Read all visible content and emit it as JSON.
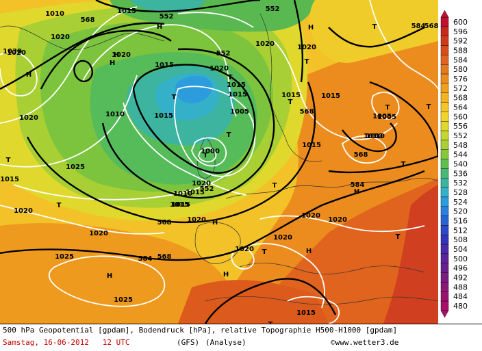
{
  "scale": {
    "levels": [
      600,
      596,
      592,
      588,
      584,
      580,
      576,
      572,
      568,
      564,
      560,
      556,
      552,
      548,
      544,
      540,
      536,
      532,
      528,
      524,
      520,
      516,
      512,
      508,
      504,
      500,
      496,
      492,
      488,
      484,
      480
    ],
    "colors": [
      "#c01030",
      "#c8281c",
      "#d03a1a",
      "#d84e1a",
      "#e06420",
      "#e6781e",
      "#ec8c1e",
      "#f0a01e",
      "#f4b420",
      "#f6c624",
      "#f2d42a",
      "#e0d82c",
      "#c6d630",
      "#a8d034",
      "#86c83c",
      "#60c04c",
      "#48b874",
      "#3cb4a0",
      "#34b0c8",
      "#2c9cdc",
      "#2a80dc",
      "#2a64d4",
      "#2c48c8",
      "#3434b8",
      "#4a2aa8",
      "#5c2498",
      "#6a208c",
      "#7a1c82",
      "#8a1878",
      "#9a146e",
      "#a8106a"
    ]
  },
  "map": {
    "geopotential_labels": [
      "552",
      "552",
      "552",
      "568",
      "568",
      "568",
      "568",
      "552",
      "568",
      "568",
      "584",
      "584",
      "584"
    ],
    "pressure_labels": [
      "1010",
      "1015",
      "1020",
      "1030",
      "1020",
      "1015",
      "1020",
      "1020",
      "1015",
      "1015",
      "1020",
      "1015",
      "1005",
      "1010",
      "1020",
      "1015",
      "1015",
      "1000",
      "1005",
      "1010",
      "1015",
      "1020",
      "1015",
      "1020",
      "1025",
      "1025",
      "1020",
      "1020",
      "1020",
      "1020",
      "1020",
      "1025",
      "1015",
      "1015",
      "1015",
      "1010",
      "1015",
      "1020",
      "1020",
      "1010",
      "1005"
    ],
    "high_symbols": [
      "H",
      "H",
      "H",
      "H",
      "H",
      "H",
      "H",
      "H",
      "H",
      "H"
    ],
    "low_symbols": [
      "T",
      "T",
      "T",
      "T",
      "T",
      "T",
      "T",
      "T",
      "T",
      "T",
      "T",
      "T",
      "T",
      "T",
      "T",
      "T"
    ]
  },
  "footer": {
    "description": "500 hPa Geopotential [gpdam], Bodendruck [hPa], relative Topographie H500-H1000 [gpdam]",
    "date": "Samstag, 16-06-2012",
    "time": "12 UTC",
    "model": "(GFS)",
    "analysis": "(Analyse)",
    "copyright": "©www.wetter3.de"
  }
}
